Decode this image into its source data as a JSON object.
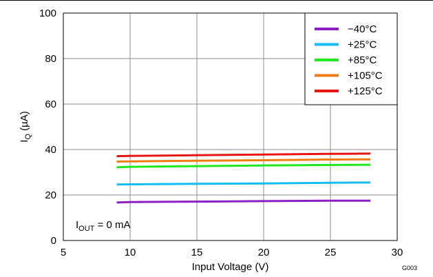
{
  "chart_data": {
    "type": "line",
    "xlabel": "Input Voltage (V)",
    "ylabel_main": "I",
    "ylabel_sub": "Q",
    "ylabel_unit": " (µA)",
    "xlim": [
      5,
      30
    ],
    "ylim": [
      0,
      100
    ],
    "x_ticks": [
      5,
      10,
      15,
      20,
      25,
      30
    ],
    "y_ticks": [
      0,
      20,
      40,
      60,
      80,
      100
    ],
    "grid": true,
    "legend_position": "top-right",
    "annotation": {
      "main": "I",
      "sub": "OUT",
      "rest": " = 0 mA"
    },
    "figure_id": "G003",
    "series": [
      {
        "name": "−40°C",
        "color": "#8a1fc4",
        "x": [
          9,
          10,
          15,
          20,
          25,
          28
        ],
        "y": [
          16.7,
          16.9,
          17.1,
          17.3,
          17.5,
          17.5
        ]
      },
      {
        "name": "+25°C",
        "color": "#14bdf0",
        "x": [
          9,
          10,
          15,
          20,
          25,
          28
        ],
        "y": [
          24.6,
          24.7,
          24.9,
          25.1,
          25.4,
          25.5
        ]
      },
      {
        "name": "+85°C",
        "color": "#22e61e",
        "x": [
          9,
          10,
          15,
          20,
          25,
          28
        ],
        "y": [
          32.2,
          32.4,
          32.7,
          33.0,
          33.2,
          33.3
        ]
      },
      {
        "name": "+105°C",
        "color": "#f07c14",
        "x": [
          9,
          10,
          15,
          20,
          25,
          28
        ],
        "y": [
          34.7,
          34.8,
          35.1,
          35.3,
          35.6,
          35.7
        ]
      },
      {
        "name": "+125°C",
        "color": "#e81414",
        "x": [
          9,
          10,
          15,
          20,
          25,
          28
        ],
        "y": [
          37.1,
          37.2,
          37.5,
          37.8,
          38.1,
          38.2
        ]
      }
    ]
  }
}
